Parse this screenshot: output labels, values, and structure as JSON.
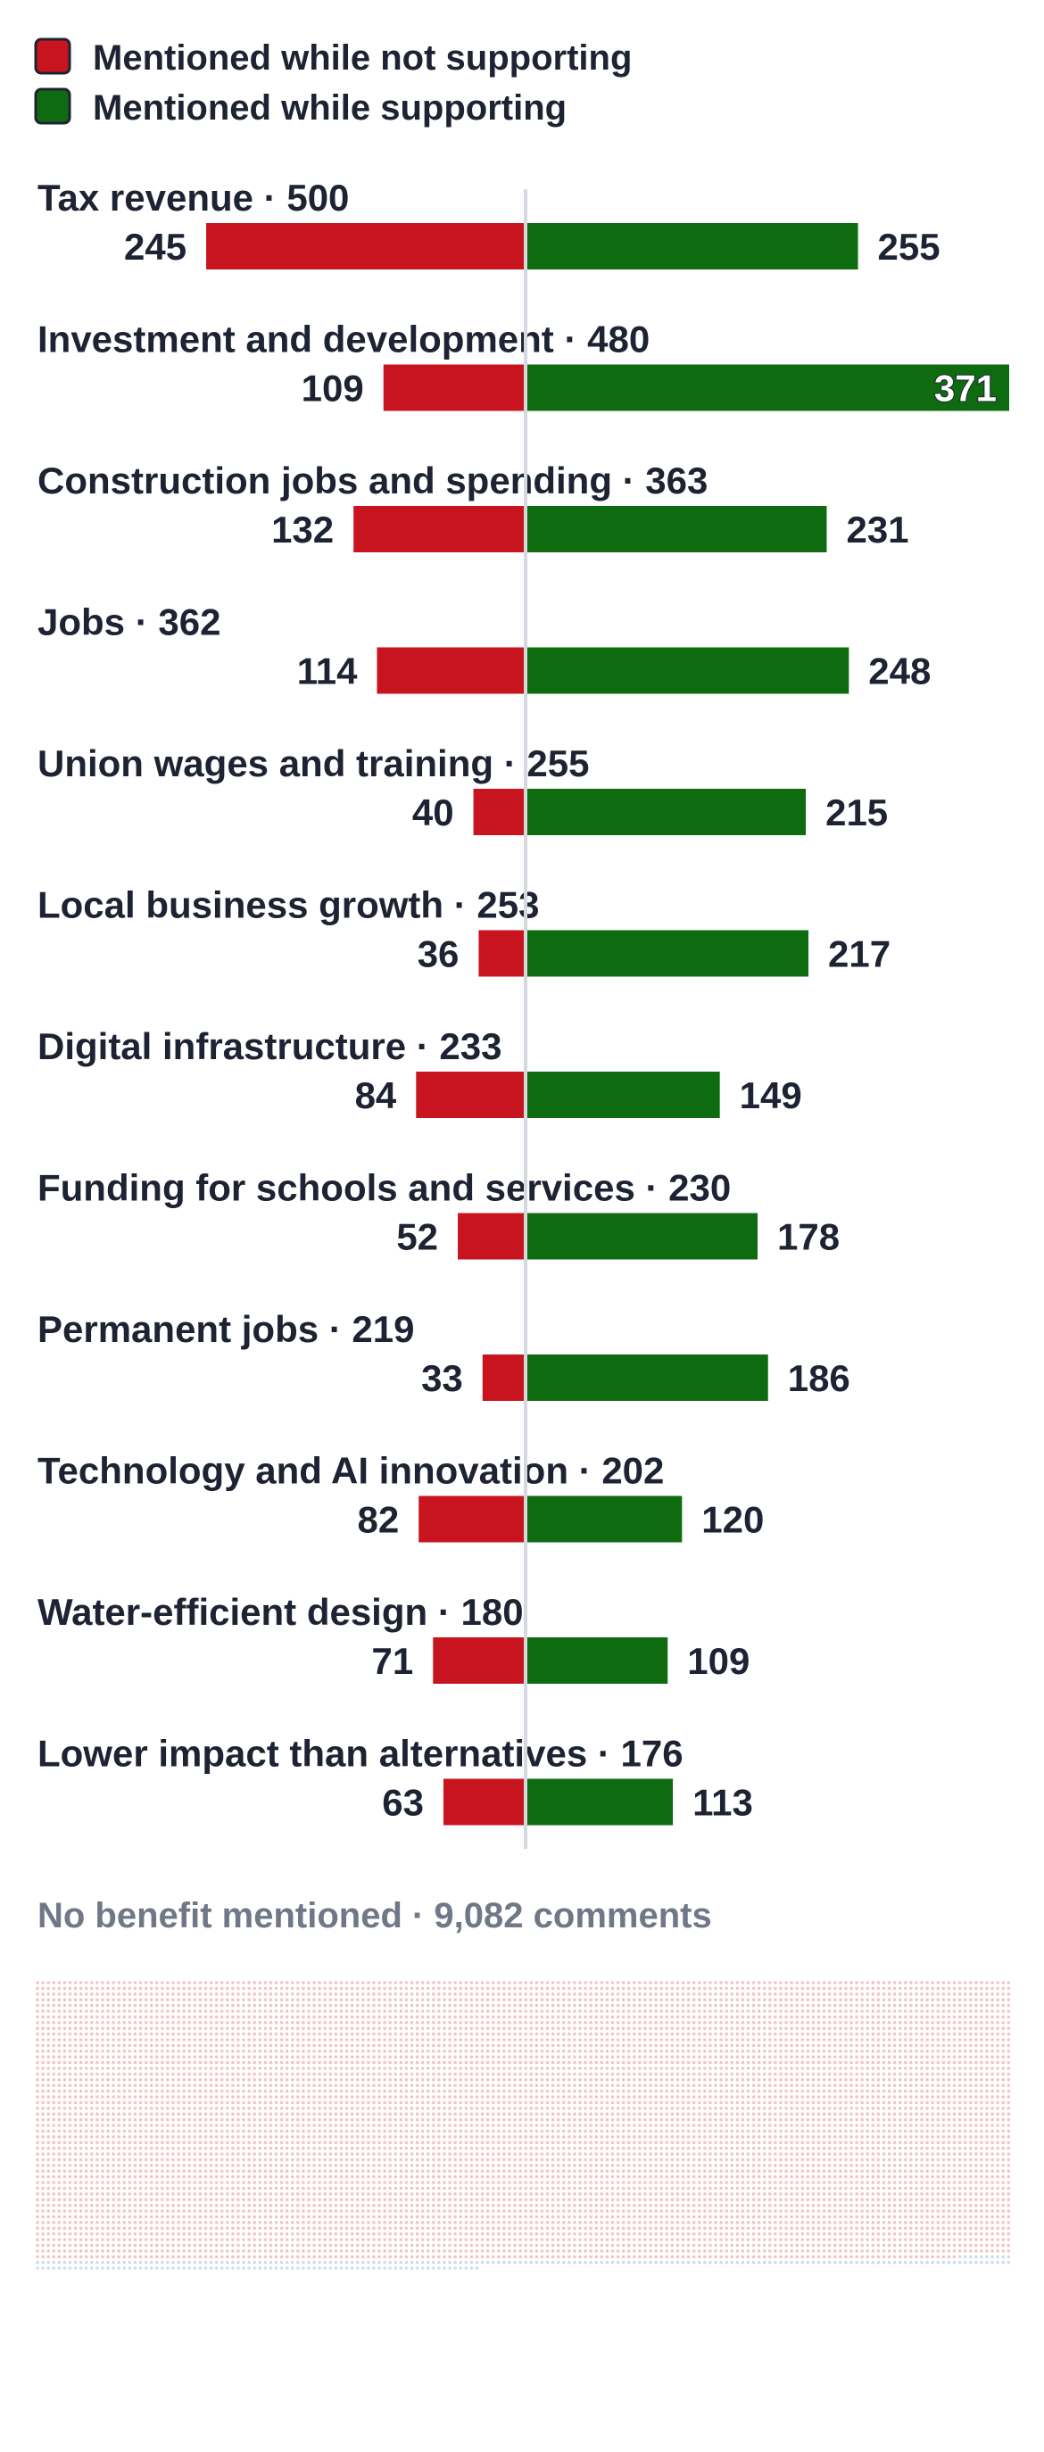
{
  "legend": [
    {
      "label": "Mentioned while not supporting",
      "color": "#c8141f"
    },
    {
      "label": "Mentioned while supporting",
      "color": "#0f6b10"
    }
  ],
  "no_benefit": {
    "label": "No benefit mentioned · 9,082 comments",
    "count": 9082,
    "dot_color": "#f2c4c8",
    "dot_color_secondary": "#cfdcef"
  },
  "chart_data": {
    "type": "bar",
    "orientation": "horizontal-diverging",
    "categories": [
      "Tax revenue",
      "Investment and development",
      "Construction jobs and spending",
      "Jobs",
      "Union wages and training",
      "Local business growth",
      "Digital infrastructure",
      "Funding for schools and services",
      "Permanent jobs",
      "Technology and AI innovation",
      "Water-efficient design",
      "Lower impact than alternatives"
    ],
    "totals": [
      500,
      480,
      363,
      362,
      255,
      253,
      233,
      230,
      219,
      202,
      180,
      176
    ],
    "series": [
      {
        "name": "Mentioned while not supporting",
        "color": "#c8141f",
        "values": [
          245,
          109,
          132,
          114,
          40,
          36,
          84,
          52,
          33,
          82,
          71,
          63
        ]
      },
      {
        "name": "Mentioned while supporting",
        "color": "#0f6b10",
        "values": [
          255,
          371,
          231,
          248,
          215,
          217,
          149,
          178,
          186,
          120,
          109,
          113
        ]
      }
    ],
    "xlim": [
      -371,
      371
    ],
    "grid": false,
    "legend_position": "top-left"
  }
}
